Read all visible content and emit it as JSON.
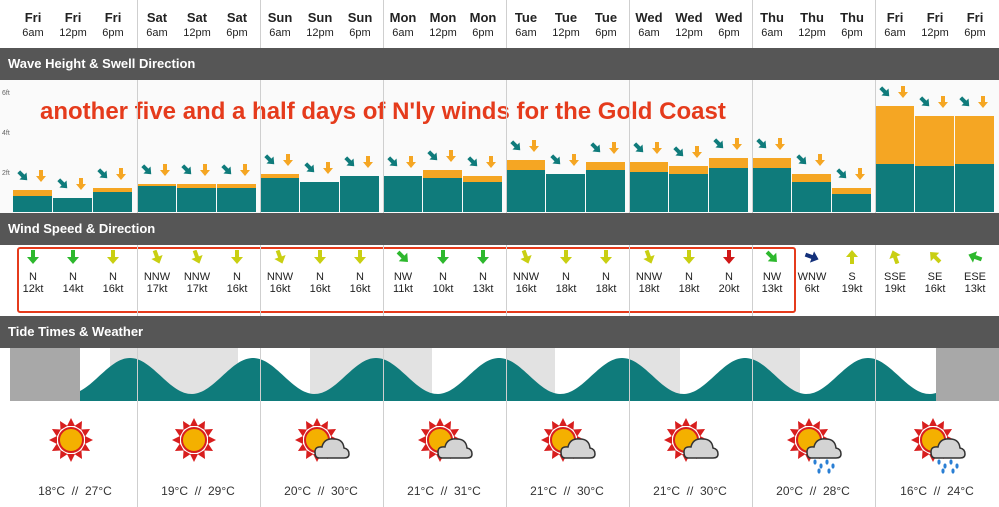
{
  "header": {
    "slots": [
      {
        "day": "Fri",
        "time": "6am"
      },
      {
        "day": "Fri",
        "time": "12pm"
      },
      {
        "day": "Fri",
        "time": "6pm"
      },
      {
        "day": "Sat",
        "time": "6am"
      },
      {
        "day": "Sat",
        "time": "12pm"
      },
      {
        "day": "Sat",
        "time": "6pm"
      },
      {
        "day": "Sun",
        "time": "6am"
      },
      {
        "day": "Sun",
        "time": "12pm"
      },
      {
        "day": "Sun",
        "time": "6pm"
      },
      {
        "day": "Mon",
        "time": "6am"
      },
      {
        "day": "Mon",
        "time": "12pm"
      },
      {
        "day": "Mon",
        "time": "6pm"
      },
      {
        "day": "Tue",
        "time": "6am"
      },
      {
        "day": "Tue",
        "time": "12pm"
      },
      {
        "day": "Tue",
        "time": "6pm"
      },
      {
        "day": "Wed",
        "time": "6am"
      },
      {
        "day": "Wed",
        "time": "12pm"
      },
      {
        "day": "Wed",
        "time": "6pm"
      },
      {
        "day": "Thu",
        "time": "6am"
      },
      {
        "day": "Thu",
        "time": "12pm"
      },
      {
        "day": "Thu",
        "time": "6pm"
      },
      {
        "day": "Fri",
        "time": "6am"
      },
      {
        "day": "Fri",
        "time": "12pm"
      },
      {
        "day": "Fri",
        "time": "6pm"
      }
    ]
  },
  "sections": {
    "wave": "Wave Height & Swell Direction",
    "wind": "Wind Speed & Direction",
    "tide": "Tide Times & Weather"
  },
  "scale_labels": [
    "6ft",
    "4ft",
    "2ft"
  ],
  "annotation": "another five and a half days of N'ly winds for the Gold Coast",
  "colors": {
    "swell": "#0f7b7b",
    "wave": "#f5a623",
    "band": "#565656",
    "highlight": "#e53b1c"
  },
  "chart_data": {
    "type": "bar",
    "title": "Wave Height & Swell Direction",
    "series": [
      {
        "values": [
          0.8,
          0.7,
          1.0,
          1.3,
          1.2,
          1.2,
          1.7,
          1.5,
          1.8,
          1.8,
          1.7,
          1.5,
          2.1,
          1.9,
          2.1,
          2.0,
          1.9,
          2.2,
          2.2,
          1.5,
          0.9,
          2.4,
          2.3,
          2.4
        ]
      },
      {
        "values": [
          0.3,
          0.0,
          0.2,
          0.1,
          0.2,
          0.2,
          0.2,
          0.0,
          0.0,
          0.0,
          0.4,
          0.3,
          0.5,
          0.0,
          0.4,
          0.5,
          0.4,
          0.5,
          0.5,
          0.4,
          0.3,
          2.9,
          2.5,
          2.4
        ]
      }
    ],
    "ylim": [
      0,
      6.5
    ]
  },
  "wind": [
    {
      "dir": "N",
      "speed": "12kt",
      "color": "#2db82d"
    },
    {
      "dir": "N",
      "speed": "14kt",
      "color": "#2db82d"
    },
    {
      "dir": "N",
      "speed": "16kt",
      "color": "#c9cf12"
    },
    {
      "dir": "NNW",
      "speed": "17kt",
      "color": "#c9cf12"
    },
    {
      "dir": "NNW",
      "speed": "17kt",
      "color": "#c9cf12"
    },
    {
      "dir": "N",
      "speed": "16kt",
      "color": "#c9cf12"
    },
    {
      "dir": "NNW",
      "speed": "16kt",
      "color": "#c9cf12"
    },
    {
      "dir": "N",
      "speed": "16kt",
      "color": "#c9cf12"
    },
    {
      "dir": "N",
      "speed": "16kt",
      "color": "#c9cf12"
    },
    {
      "dir": "NW",
      "speed": "11kt",
      "color": "#2db82d"
    },
    {
      "dir": "N",
      "speed": "10kt",
      "color": "#2db82d"
    },
    {
      "dir": "N",
      "speed": "13kt",
      "color": "#2db82d"
    },
    {
      "dir": "NNW",
      "speed": "16kt",
      "color": "#c9cf12"
    },
    {
      "dir": "N",
      "speed": "18kt",
      "color": "#c9cf12"
    },
    {
      "dir": "N",
      "speed": "18kt",
      "color": "#c9cf12"
    },
    {
      "dir": "NNW",
      "speed": "18kt",
      "color": "#c9cf12"
    },
    {
      "dir": "N",
      "speed": "18kt",
      "color": "#c9cf12"
    },
    {
      "dir": "N",
      "speed": "20kt",
      "color": "#d01818"
    },
    {
      "dir": "NW",
      "speed": "13kt",
      "color": "#2db82d"
    },
    {
      "dir": "WNW",
      "speed": "6kt",
      "color": "#13307a"
    },
    {
      "dir": "S",
      "speed": "19kt",
      "color": "#c9cf12"
    },
    {
      "dir": "SSE",
      "speed": "19kt",
      "color": "#c9cf12"
    },
    {
      "dir": "SE",
      "speed": "16kt",
      "color": "#c9cf12"
    },
    {
      "dir": "ESE",
      "speed": "13kt",
      "color": "#2db82d"
    }
  ],
  "weather": [
    {
      "icon": "sun-icon",
      "temps": "18°C  //  27°C"
    },
    {
      "icon": "sun-icon",
      "temps": "19°C  //  29°C"
    },
    {
      "icon": "sun-cloud-icon",
      "temps": "20°C  //  30°C"
    },
    {
      "icon": "sun-cloud-icon",
      "temps": "21°C  //  31°C"
    },
    {
      "icon": "sun-cloud-icon",
      "temps": "21°C  //  30°C"
    },
    {
      "icon": "sun-cloud-icon",
      "temps": "21°C  //  30°C"
    },
    {
      "icon": "sun-cloud-rain-icon",
      "temps": "20°C  //  28°C"
    },
    {
      "icon": "sun-cloud-rain-icon",
      "temps": "16°C  //  24°C"
    }
  ]
}
